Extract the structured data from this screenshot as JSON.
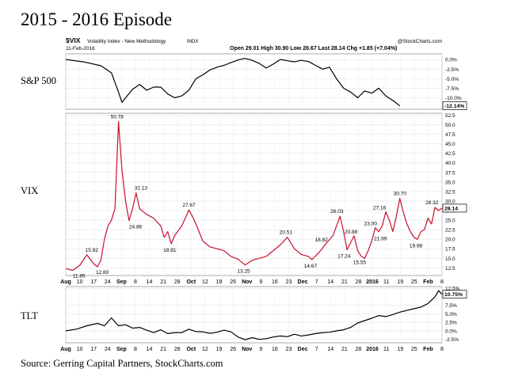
{
  "title": "2015 - 2016 Episode",
  "source": "Source: Gerring Capital Partners, StockCharts.com",
  "header": {
    "symbol": "$VIX",
    "name": "Volatility Index - New Methodology",
    "exchange": "INDX",
    "date": "11-Feb-2016",
    "quote": "Open 29.01  High 30.90  Low 26.67  Last 28.14  Chg +1.85 (+7.04%)",
    "copyright": "@StockCharts.com"
  },
  "side_labels": {
    "sp500": "S&P 500",
    "vix": "VIX",
    "tlt": "TLT"
  },
  "x_ticks": [
    "Aug",
    "10",
    "17",
    "24",
    "Sep",
    "8",
    "14",
    "21",
    "28",
    "Oct",
    "12",
    "19",
    "26",
    "Nov",
    "9",
    "16",
    "23",
    "Dec",
    "7",
    "14",
    "21",
    "28",
    "2016",
    "11",
    "19",
    "25",
    "Feb",
    "8"
  ],
  "chart_data": [
    {
      "type": "line",
      "name": "S&P 500",
      "color": "#000000",
      "y_ticks": [
        "0.0%",
        "-2.5%",
        "-5.0%",
        "-7.5%",
        "-10.0%"
      ],
      "ylim": [
        -13,
        1.5
      ],
      "last_label": "-12.14%",
      "points": [
        [
          0,
          0.0
        ],
        [
          5,
          -0.6
        ],
        [
          10,
          -1.6
        ],
        [
          13,
          -3.5
        ],
        [
          15,
          -8.5
        ],
        [
          16,
          -11.2
        ],
        [
          17,
          -10.0
        ],
        [
          19,
          -7.8
        ],
        [
          21,
          -6.5
        ],
        [
          23,
          -8.0
        ],
        [
          25,
          -7.2
        ],
        [
          27,
          -7.2
        ],
        [
          29,
          -9.0
        ],
        [
          31,
          -10.0
        ],
        [
          33,
          -9.5
        ],
        [
          35,
          -8.0
        ],
        [
          37,
          -5.0
        ],
        [
          39,
          -4.0
        ],
        [
          41,
          -2.7
        ],
        [
          43,
          -2.0
        ],
        [
          45,
          -1.5
        ],
        [
          47,
          -0.8
        ],
        [
          49,
          -0.1
        ],
        [
          51,
          0.3
        ],
        [
          53,
          -0.2
        ],
        [
          55,
          -1.0
        ],
        [
          57,
          -2.2
        ],
        [
          59,
          -1.2
        ],
        [
          61,
          0.0
        ],
        [
          63,
          -0.3
        ],
        [
          65,
          -0.6
        ],
        [
          67,
          -0.2
        ],
        [
          69,
          -0.5
        ],
        [
          71,
          -1.5
        ],
        [
          73,
          -2.5
        ],
        [
          75,
          -2.0
        ],
        [
          77,
          -5.0
        ],
        [
          79,
          -7.5
        ],
        [
          81,
          -8.5
        ],
        [
          83,
          -10.0
        ],
        [
          85,
          -8.2
        ],
        [
          87,
          -8.8
        ],
        [
          89,
          -7.5
        ],
        [
          91,
          -9.5
        ],
        [
          93,
          -10.7
        ],
        [
          95,
          -12.1
        ]
      ]
    },
    {
      "type": "line",
      "name": "VIX",
      "color": "#c8102e",
      "y_ticks": [
        "52.5",
        "50.0",
        "47.5",
        "45.0",
        "42.5",
        "40.0",
        "37.5",
        "35.0",
        "32.5",
        "30.0",
        "27.5",
        "25.0",
        "22.5",
        "20.0",
        "17.5",
        "15.0",
        "12.5"
      ],
      "ylim": [
        10.5,
        53
      ],
      "last_label": "28.14",
      "points": [
        [
          0,
          12.3
        ],
        [
          2,
          11.85
        ],
        [
          4,
          13.2
        ],
        [
          6,
          15.92
        ],
        [
          8,
          13.5
        ],
        [
          9,
          12.8
        ],
        [
          10,
          14.5
        ],
        [
          11,
          20.0
        ],
        [
          12,
          23.5
        ],
        [
          13,
          25.0
        ],
        [
          14,
          28.0
        ],
        [
          15,
          50.78
        ],
        [
          16,
          38.0
        ],
        [
          17,
          30.0
        ],
        [
          18,
          24.86
        ],
        [
          19,
          28.0
        ],
        [
          20,
          32.13
        ],
        [
          21,
          28.0
        ],
        [
          23,
          26.5
        ],
        [
          25,
          25.5
        ],
        [
          27,
          23.5
        ],
        [
          28,
          20.5
        ],
        [
          29,
          22.0
        ],
        [
          30,
          18.81
        ],
        [
          31,
          21.0
        ],
        [
          33,
          23.5
        ],
        [
          34,
          25.5
        ],
        [
          35,
          27.67
        ],
        [
          36,
          26.0
        ],
        [
          37,
          24.0
        ],
        [
          39,
          19.5
        ],
        [
          41,
          18.0
        ],
        [
          43,
          17.5
        ],
        [
          45,
          17.0
        ],
        [
          47,
          15.5
        ],
        [
          49,
          14.8
        ],
        [
          51,
          13.25
        ],
        [
          53,
          14.5
        ],
        [
          55,
          15.0
        ],
        [
          57,
          15.5
        ],
        [
          59,
          17.0
        ],
        [
          61,
          18.5
        ],
        [
          63,
          20.51
        ],
        [
          65,
          17.5
        ],
        [
          67,
          16.0
        ],
        [
          69,
          15.5
        ],
        [
          70,
          14.67
        ],
        [
          72,
          16.5
        ],
        [
          74,
          18.82
        ],
        [
          76,
          21.0
        ],
        [
          78,
          26.03
        ],
        [
          79,
          22.0
        ],
        [
          80,
          17.24
        ],
        [
          82,
          20.88
        ],
        [
          83,
          17.0
        ],
        [
          84,
          15.55
        ],
        [
          85,
          15.0
        ],
        [
          86,
          17.0
        ],
        [
          87,
          19.5
        ],
        [
          88,
          23.0
        ],
        [
          89,
          21.99
        ],
        [
          90,
          23.5
        ],
        [
          91,
          27.16
        ],
        [
          92,
          25.0
        ],
        [
          93,
          22.0
        ],
        [
          94,
          26.0
        ],
        [
          95,
          30.7
        ],
        [
          96,
          27.0
        ],
        [
          97,
          24.0
        ],
        [
          98,
          22.0
        ],
        [
          99,
          20.5
        ],
        [
          100,
          19.98
        ],
        [
          101,
          22.0
        ],
        [
          102,
          22.5
        ],
        [
          103,
          25.5
        ],
        [
          104,
          24.0
        ],
        [
          105,
          28.32
        ],
        [
          106,
          27.5
        ],
        [
          107,
          28.14
        ]
      ]
    },
    {
      "type": "line",
      "name": "TLT",
      "color": "#000000",
      "y_ticks": [
        "12.5%",
        "7.5%",
        "5.0%",
        "2.5%",
        "0.0%",
        "-2.5%"
      ],
      "ylim": [
        -3.5,
        13
      ],
      "last_label": "10.75%",
      "points": [
        [
          0,
          0.0
        ],
        [
          3,
          0.5
        ],
        [
          6,
          1.5
        ],
        [
          9,
          2.2
        ],
        [
          11,
          1.5
        ],
        [
          13,
          3.8
        ],
        [
          15,
          1.5
        ],
        [
          17,
          1.8
        ],
        [
          19,
          0.8
        ],
        [
          21,
          1.0
        ],
        [
          23,
          0.2
        ],
        [
          25,
          -0.5
        ],
        [
          27,
          0.3
        ],
        [
          29,
          -0.8
        ],
        [
          31,
          -0.5
        ],
        [
          33,
          -0.5
        ],
        [
          35,
          0.5
        ],
        [
          37,
          -0.2
        ],
        [
          39,
          -0.3
        ],
        [
          41,
          -0.7
        ],
        [
          43,
          -0.4
        ],
        [
          45,
          0.2
        ],
        [
          47,
          -0.3
        ],
        [
          49,
          -1.8
        ],
        [
          51,
          -2.6
        ],
        [
          53,
          -2.0
        ],
        [
          55,
          -2.5
        ],
        [
          57,
          -2.3
        ],
        [
          59,
          -1.8
        ],
        [
          61,
          -1.5
        ],
        [
          63,
          -1.7
        ],
        [
          65,
          -1.0
        ],
        [
          67,
          -1.5
        ],
        [
          69,
          -1.2
        ],
        [
          71,
          -0.8
        ],
        [
          73,
          -0.5
        ],
        [
          75,
          -0.4
        ],
        [
          77,
          0.0
        ],
        [
          79,
          0.3
        ],
        [
          81,
          1.0
        ],
        [
          83,
          2.3
        ],
        [
          85,
          3.0
        ],
        [
          87,
          3.7
        ],
        [
          89,
          4.5
        ],
        [
          91,
          4.2
        ],
        [
          93,
          4.8
        ],
        [
          95,
          5.5
        ],
        [
          97,
          6.0
        ],
        [
          99,
          6.5
        ],
        [
          101,
          7.0
        ],
        [
          103,
          8.0
        ],
        [
          105,
          10.0
        ],
        [
          106,
          11.8
        ],
        [
          107,
          10.75
        ]
      ]
    }
  ]
}
